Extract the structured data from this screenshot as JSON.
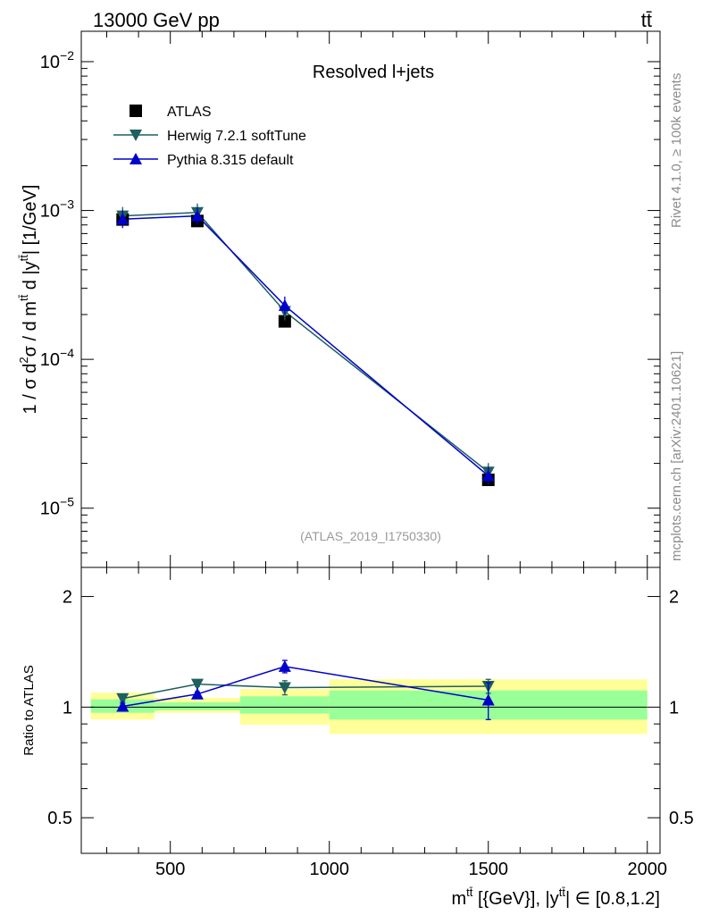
{
  "chart_data": {
    "type": "line",
    "header_left": "13000 GeV pp",
    "header_right": "tt̄",
    "title": "Resolved l+jets",
    "analysis_label": "(ATLAS_2019_I1750330)",
    "side_label_top": "Rivet 4.1.0, ≥ 100k events",
    "side_label_bottom": "mcplots.cern.ch [arXiv:2401.10621]",
    "ylabel_main": "1 / σ d²σ / d m^tt̄ d |y^tt̄| [1/GeV]",
    "ylabel_ratio": "Ratio to ATLAS",
    "xlabel": "m^tt̄ [{GeV}], |y^tt̄| ∈ [0.8,1.2]",
    "xlim": [
      220,
      2040
    ],
    "ylim_main": [
      4e-06,
      0.016
    ],
    "ylim_ratio": [
      0.4,
      2.4
    ],
    "main_y_ticks": [
      {
        "value": 1e-05,
        "base": "10",
        "exp": "−5"
      },
      {
        "value": 0.0001,
        "base": "10",
        "exp": "−4"
      },
      {
        "value": 0.001,
        "base": "10",
        "exp": "−3"
      },
      {
        "value": 0.01,
        "base": "10",
        "exp": "−2"
      }
    ],
    "x_ticks": [
      {
        "value": 500,
        "label": "500"
      },
      {
        "value": 1000,
        "label": "1000"
      },
      {
        "value": 1500,
        "label": "1500"
      },
      {
        "value": 2000,
        "label": "2000"
      }
    ],
    "ratio_ticks": [
      {
        "value": 0.5,
        "label": "0.5"
      },
      {
        "value": 1,
        "label": "1"
      },
      {
        "value": 2,
        "label": "2"
      }
    ],
    "bins": [
      {
        "low": 250,
        "high": 450
      },
      {
        "low": 450,
        "high": 720
      },
      {
        "low": 720,
        "high": 1000
      },
      {
        "low": 1000,
        "high": 2000
      }
    ],
    "x": [
      350,
      585,
      860,
      1500
    ],
    "ratio_bands": [
      {
        "low": 250,
        "high": 450,
        "inner": [
          0.965,
          1.05
        ],
        "outer": [
          0.925,
          1.095
        ]
      },
      {
        "low": 450,
        "high": 720,
        "inner": [
          0.98,
          1.03
        ],
        "outer": [
          0.965,
          1.06
        ]
      },
      {
        "low": 720,
        "high": 1000,
        "inner": [
          0.96,
          1.07
        ],
        "outer": [
          0.895,
          1.12
        ]
      },
      {
        "low": 1000,
        "high": 2000,
        "inner": [
          0.925,
          1.11
        ],
        "outer": [
          0.845,
          1.19
        ]
      }
    ],
    "series": [
      {
        "name": "ATLAS",
        "color": "#000000",
        "marker": "square",
        "values": [
          0.00087,
          0.00085,
          0.00018,
          1.55e-05
        ],
        "ratio": [
          1,
          1,
          1,
          1
        ]
      },
      {
        "name": "Herwig 7.2.1 softTune",
        "color": "#1e5f5f",
        "marker": "triangle-down",
        "values": [
          0.00092,
          0.00097,
          0.00021,
          1.75e-05
        ],
        "ratio": [
          1.055,
          1.155,
          1.13,
          1.14
        ],
        "ratio_err": [
          0.02,
          0.015,
          0.05,
          0.05
        ]
      },
      {
        "name": "Pythia 8.315 default",
        "color": "#0000cc",
        "marker": "triangle-up",
        "values": [
          0.000875,
          0.00092,
          0.00023,
          1.65e-05
        ],
        "ratio": [
          1.005,
          1.085,
          1.29,
          1.045
        ],
        "ratio_err": [
          0.02,
          0.015,
          0.05,
          0.12
        ]
      }
    ],
    "legend_position": "top-left"
  }
}
